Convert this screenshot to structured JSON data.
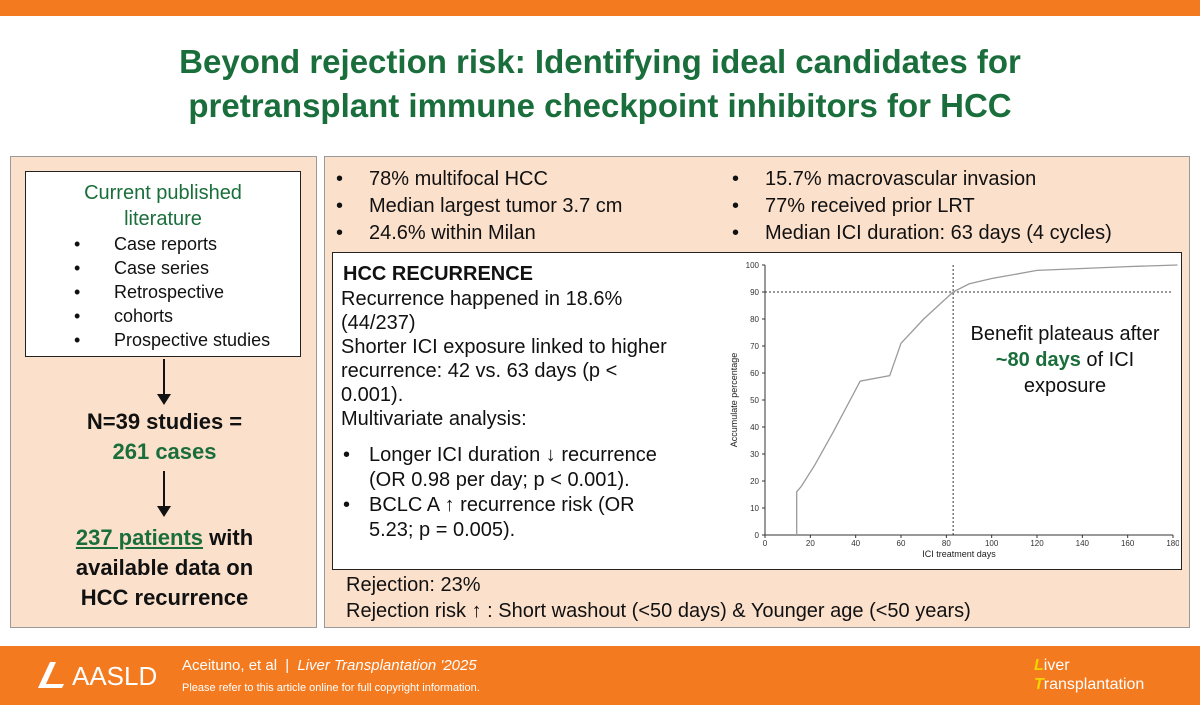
{
  "title": {
    "line1": "Beyond rejection risk: Identifying ideal candidates for",
    "line2": "pretransplant immune checkpoint inhibitors for HCC"
  },
  "left": {
    "literature_title_1": "Current published",
    "literature_title_2": "literature",
    "literature_items": [
      "Case reports",
      "Case series",
      "Retrospective",
      "cohorts",
      "Prospective studies"
    ],
    "studies_line_1": "N=39 studies =",
    "studies_line_2": "261 cases",
    "patients_highlight": "237 patients",
    "patients_rest_1": " with",
    "patients_line_2": "available data on",
    "patients_line_3": "HCC recurrence"
  },
  "characteristics": {
    "left_col": [
      "78% multifocal HCC",
      "Median largest tumor 3.7 cm",
      "24.6% within Milan"
    ],
    "right_col": [
      "15.7% macrovascular invasion",
      "77% received prior LRT",
      "Median ICI duration: 63 days (4 cycles)"
    ]
  },
  "recurrence": {
    "heading": "HCC RECURRENCE",
    "line1": "Recurrence happened in 18.6%",
    "line2": "(44/237)",
    "line3": "Shorter ICI exposure linked to higher",
    "line4": "recurrence: 42 vs. 63 days (p <",
    "line5": "0.001).",
    "line6": "Multivariate analysis:",
    "bullets": [
      {
        "a": "Longer ICI duration ↓ recurrence",
        "b": "(OR 0.98 per day; p < 0.001)."
      },
      {
        "a": "BCLC A ↑ recurrence risk (OR",
        "b": "5.23; p = 0.005)."
      }
    ]
  },
  "benefit": {
    "line1": "Benefit plateaus after",
    "highlight": "~80 days",
    "line2_rest": " of ICI",
    "line3": "exposure"
  },
  "rejection": {
    "line1": "Rejection: 23%",
    "line2": "Rejection risk ↑ : Short washout (<50 days) & Younger age (<50 years)"
  },
  "footer": {
    "org": "AASLD",
    "authors": "Aceituno, et al",
    "separator": "|",
    "journal": "Liver Transplantation",
    "year": " '2025",
    "copyright": "Please refer to this article online for full copyright information.",
    "logo_line1_cap": "L",
    "logo_line1_rest": "iver",
    "logo_line2_cap": "T",
    "logo_line2_rest": "ransplantation"
  },
  "colors": {
    "accent_orange": "#f47a20",
    "title_green": "#1a6e3b",
    "panel_fill": "#fbe0cc"
  },
  "chart_data": {
    "type": "line",
    "xlabel": "ICI treatment days",
    "ylabel": "Accumulate percentage",
    "xlim": [
      0,
      180
    ],
    "ylim": [
      0,
      100
    ],
    "x_ticks": [
      0,
      20,
      40,
      60,
      80,
      100,
      120,
      140,
      160,
      180
    ],
    "y_ticks": [
      0,
      10,
      20,
      30,
      40,
      50,
      60,
      70,
      80,
      90,
      100
    ],
    "x": [
      14,
      14,
      16,
      22,
      30,
      42,
      55,
      60,
      70,
      83,
      90,
      100,
      120,
      140,
      160,
      182
    ],
    "y": [
      0,
      16,
      18,
      26,
      38,
      57,
      59,
      71,
      80,
      90,
      93,
      95,
      98,
      98.7,
      99.4,
      100
    ],
    "reference_x": 83,
    "reference_y": 90,
    "grid": false
  }
}
